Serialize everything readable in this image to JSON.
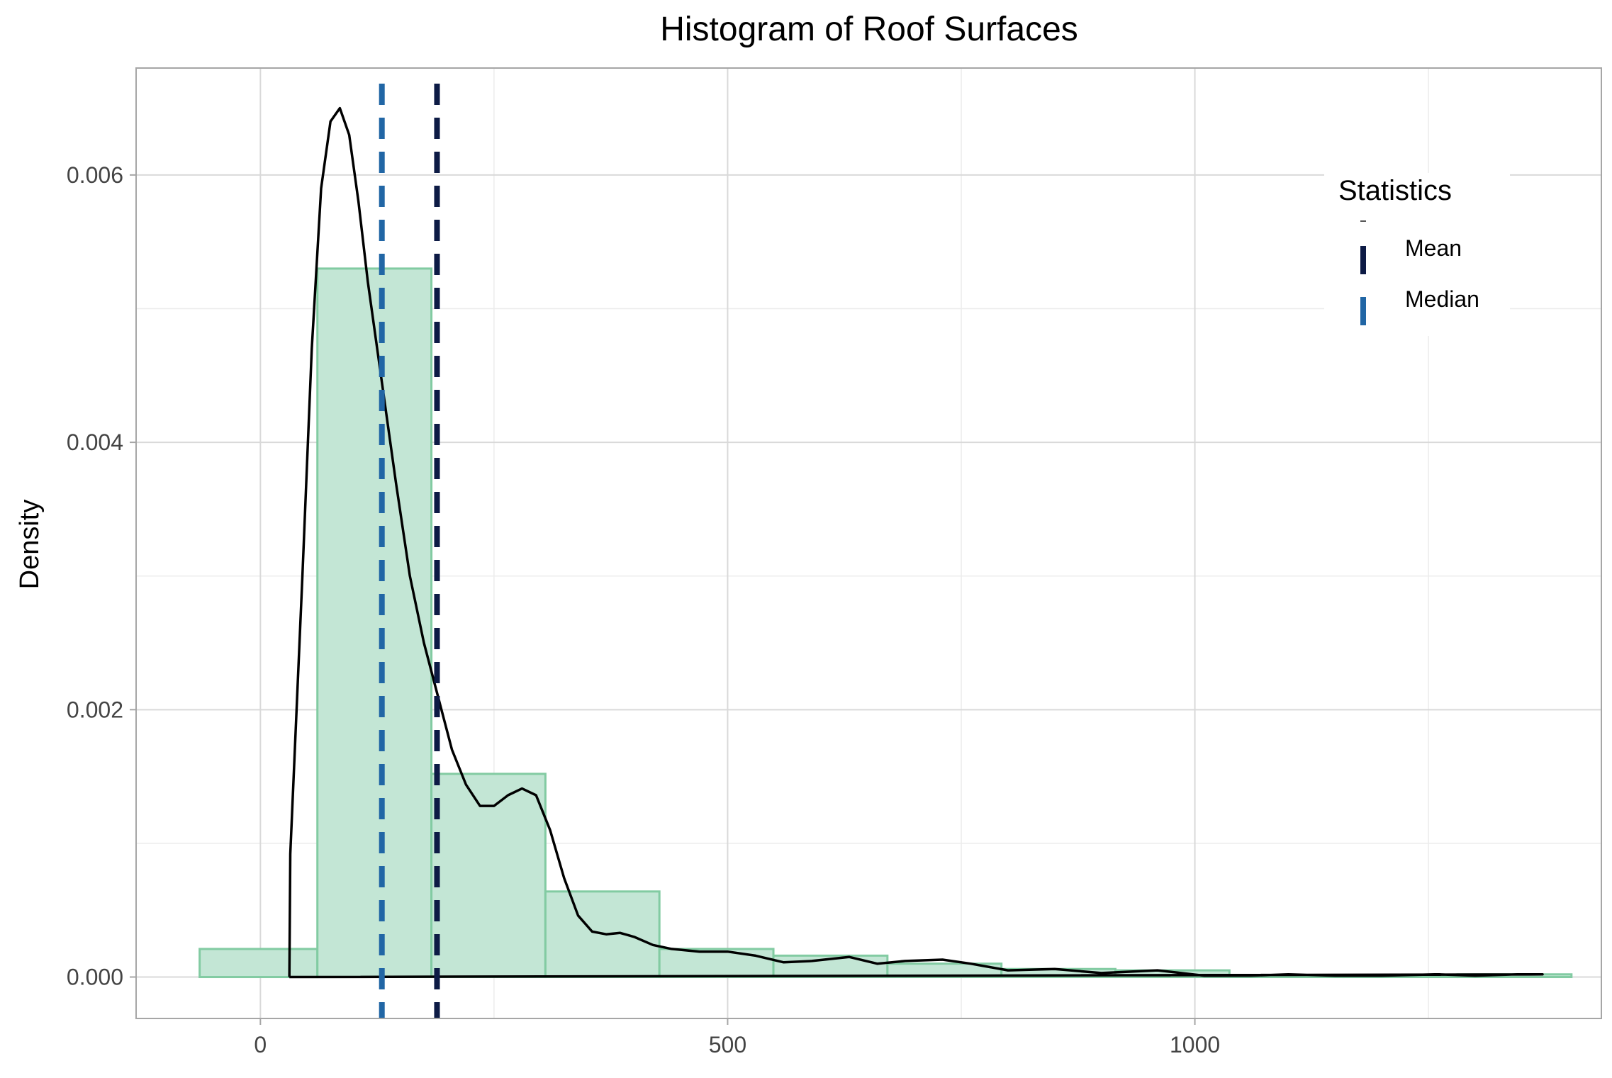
{
  "chart_data": {
    "type": "bar",
    "title": "Histogram of Roof Surfaces",
    "xlabel": "",
    "ylabel": "Density",
    "xlim": [
      -133,
      1435
    ],
    "ylim": [
      -0.00031,
      0.0068
    ],
    "x_ticks": [
      0,
      500,
      1000
    ],
    "x_tick_labels": [
      "0",
      "500",
      "1000"
    ],
    "y_ticks": [
      0,
      0.002,
      0.004,
      0.006
    ],
    "y_tick_labels": [
      "0.000",
      "0.002",
      "0.004",
      "0.006"
    ],
    "y_minor_ticks": [
      0.001,
      0.003,
      0.005
    ],
    "x_minor_ticks": [
      250,
      750,
      1250
    ],
    "grid": true,
    "histogram": {
      "bins": [
        {
          "x0": -65,
          "x1": 61,
          "density": 0.00021
        },
        {
          "x0": 61,
          "x1": 183,
          "density": 0.0053
        },
        {
          "x0": 183,
          "x1": 305,
          "density": 0.00152
        },
        {
          "x0": 305,
          "x1": 427,
          "density": 0.00064
        },
        {
          "x0": 427,
          "x1": 549,
          "density": 0.00021
        },
        {
          "x0": 549,
          "x1": 671,
          "density": 0.00016
        },
        {
          "x0": 671,
          "x1": 793,
          "density": 0.0001
        },
        {
          "x0": 793,
          "x1": 915,
          "density": 6e-05
        },
        {
          "x0": 915,
          "x1": 1037,
          "density": 5e-05
        },
        {
          "x0": 1037,
          "x1": 1159,
          "density": 1e-05
        },
        {
          "x0": 1159,
          "x1": 1281,
          "density": 1e-05
        },
        {
          "x0": 1281,
          "x1": 1403,
          "density": 2e-05
        }
      ],
      "fill_color": "#c3e6d5",
      "edge_color": "#82cba2"
    },
    "density_curve": {
      "x": [
        31,
        32,
        45,
        55,
        65,
        75,
        85,
        95,
        105,
        115,
        125,
        135,
        145,
        160,
        175,
        190,
        205,
        220,
        235,
        250,
        265,
        280,
        295,
        310,
        325,
        340,
        355,
        370,
        385,
        400,
        420,
        440,
        470,
        500,
        530,
        560,
        590,
        630,
        660,
        690,
        730,
        760,
        800,
        850,
        900,
        960,
        1010,
        1060,
        1100,
        1150,
        1200,
        1260,
        1300,
        1345,
        1372
      ],
      "y": [
        0,
        0.00092,
        0.003,
        0.0047,
        0.0059,
        0.0064,
        0.0065,
        0.0063,
        0.0058,
        0.0052,
        0.0047,
        0.0042,
        0.0037,
        0.003,
        0.0025,
        0.0021,
        0.0017,
        0.00144,
        0.00128,
        0.00128,
        0.00136,
        0.00141,
        0.00136,
        0.0011,
        0.00074,
        0.00046,
        0.00034,
        0.00032,
        0.00033,
        0.0003,
        0.00024,
        0.00021,
        0.00019,
        0.00019,
        0.00016,
        0.00011,
        0.00012,
        0.00015,
        0.0001,
        0.00012,
        0.00013,
        0.0001,
        5e-05,
        6e-05,
        3e-05,
        5e-05,
        1e-05,
        1e-05,
        2e-05,
        1e-05,
        1e-05,
        2e-05,
        1e-05,
        2e-05,
        2e-05
      ],
      "color": "#000000"
    },
    "statistics_lines": [
      {
        "name": "Mean",
        "x": 189,
        "color": "#0d1b45",
        "style": "dashed"
      },
      {
        "name": "Median",
        "x": 130,
        "color": "#2166a5",
        "style": "dashed"
      }
    ],
    "legend": {
      "title": "Statistics",
      "placement": "top-right",
      "entries": [
        "Mean",
        "Median"
      ]
    }
  }
}
